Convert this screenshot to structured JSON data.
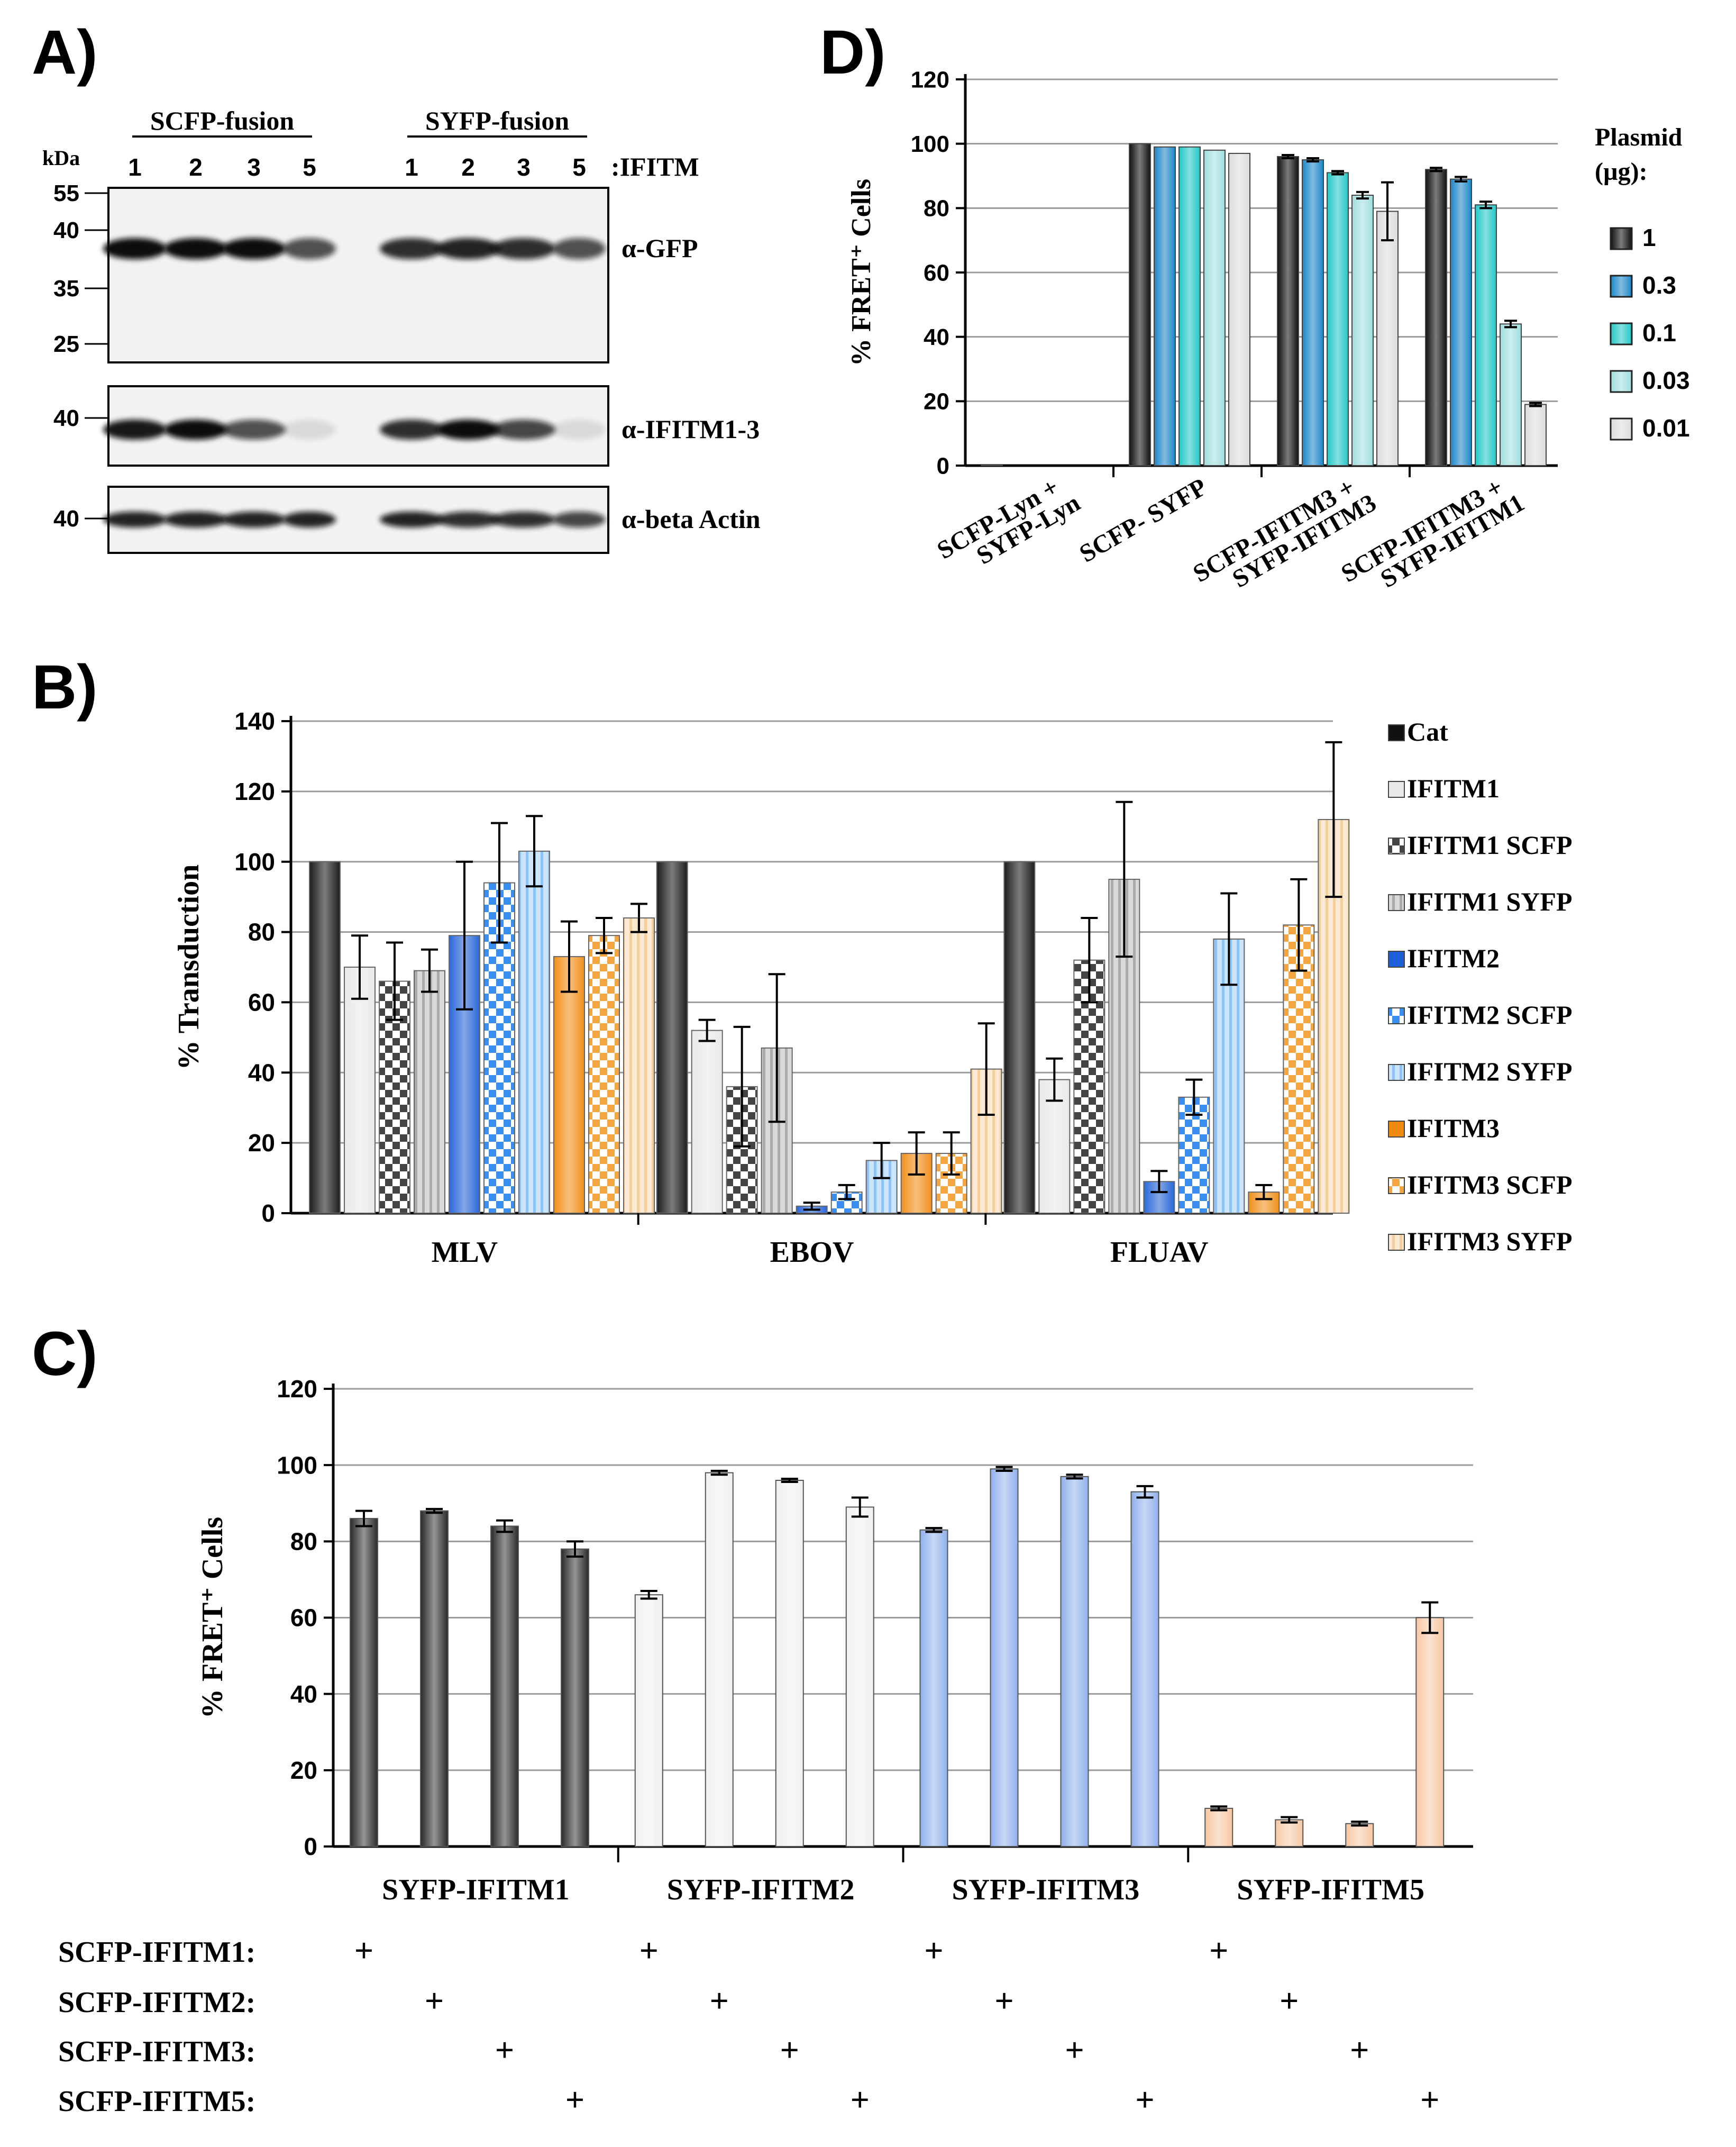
{
  "panels": {
    "a": {
      "letter": "A)",
      "group_scfp": "SCFP-fusion",
      "group_syfp": "SYFP-fusion",
      "kda_label": "kDa",
      "lanes": [
        "1",
        "2",
        "3",
        "5",
        "1",
        "2",
        "3",
        "5"
      ],
      "lane_suffix": ":IFITM",
      "blots": [
        {
          "label": "α-GFP",
          "markers": [
            "55",
            "40",
            "35",
            "25"
          ],
          "band_intensity": [
            1.0,
            1.0,
            1.0,
            0.7,
            0.85,
            0.9,
            0.85,
            0.7
          ]
        },
        {
          "label": "α-IFITM1-3",
          "markers": [
            "40"
          ],
          "band_intensity": [
            0.95,
            1.0,
            0.7,
            0.1,
            0.85,
            1.0,
            0.75,
            0.1
          ]
        },
        {
          "label": "α-beta Actin",
          "markers": [
            "40"
          ],
          "band_intensity": [
            0.9,
            0.9,
            0.9,
            0.9,
            0.9,
            0.85,
            0.85,
            0.75
          ]
        }
      ]
    },
    "b": {
      "letter": "B)"
    },
    "c": {
      "letter": "C)",
      "row_labels": [
        "SCFP-IFITM1:",
        "SCFP-IFITM2:",
        "SCFP-IFITM3:",
        "SCFP-IFITM5:"
      ],
      "plus": "+"
    },
    "d": {
      "letter": "D)"
    }
  },
  "chart_data": [
    {
      "id": "panel-b",
      "type": "bar",
      "ylabel": "% Transduction",
      "ylim": [
        0,
        140
      ],
      "yticks": [
        "0",
        "20",
        "40",
        "60",
        "80",
        "100",
        "120",
        "140"
      ],
      "grid": true,
      "legend_position": "right",
      "categories": [
        "MLV",
        "EBOV",
        "FLUAV"
      ],
      "series": [
        {
          "name": "Cat",
          "values": [
            100,
            100,
            100
          ],
          "errors": [
            0,
            0,
            0
          ],
          "color": "#111111",
          "pattern": "solid"
        },
        {
          "name": "IFITM1",
          "values": [
            70,
            52,
            38
          ],
          "errors": [
            9,
            3,
            6
          ],
          "color": "#e8e8e8",
          "pattern": "solid"
        },
        {
          "name": "IFITM1 SCFP",
          "values": [
            66,
            36,
            72
          ],
          "errors": [
            11,
            17,
            12
          ],
          "color": "#444444",
          "pattern": "check"
        },
        {
          "name": "IFITM1 SYFP",
          "values": [
            69,
            47,
            95
          ],
          "errors": [
            6,
            21,
            22
          ],
          "color": "#aaaaaa",
          "pattern": "vstripe"
        },
        {
          "name": "IFITM2",
          "values": [
            79,
            2,
            9
          ],
          "errors": [
            21,
            1,
            3
          ],
          "color": "#1f5fd6",
          "pattern": "solid"
        },
        {
          "name": "IFITM2 SCFP",
          "values": [
            94,
            6,
            33
          ],
          "errors": [
            17,
            2,
            5
          ],
          "color": "#3a8ef0",
          "pattern": "check"
        },
        {
          "name": "IFITM2 SYFP",
          "values": [
            103,
            15,
            78
          ],
          "errors": [
            10,
            5,
            13
          ],
          "color": "#8fc2f5",
          "pattern": "vstripe"
        },
        {
          "name": "IFITM3",
          "values": [
            73,
            17,
            6
          ],
          "errors": [
            10,
            6,
            2
          ],
          "color": "#f08a10",
          "pattern": "solid"
        },
        {
          "name": "IFITM3 SCFP",
          "values": [
            79,
            17,
            82
          ],
          "errors": [
            5,
            6,
            13
          ],
          "color": "#f5a640",
          "pattern": "check"
        },
        {
          "name": "IFITM3 SYFP",
          "values": [
            84,
            41,
            112
          ],
          "errors": [
            4,
            13,
            22
          ],
          "color": "#f3cfa0",
          "pattern": "vstripe"
        }
      ]
    },
    {
      "id": "panel-c",
      "type": "bar",
      "ylabel": "% FRET⁺ Cells",
      "ylim": [
        0,
        120
      ],
      "yticks": [
        "0",
        "20",
        "40",
        "60",
        "80",
        "100",
        "120"
      ],
      "grid": true,
      "categories": [
        "SYFP-IFITM1",
        "SYFP-IFITM2",
        "SYFP-IFITM3",
        "SYFP-IFITM5"
      ],
      "series": [
        {
          "name": "SCFP-IFITM1",
          "values": [
            86,
            66,
            83,
            10
          ],
          "errors": [
            2,
            1,
            0.5,
            0.5
          ]
        },
        {
          "name": "SCFP-IFITM2",
          "values": [
            88,
            98,
            99,
            7
          ],
          "errors": [
            0.5,
            0.5,
            0.5,
            0.7
          ]
        },
        {
          "name": "SCFP-IFITM3",
          "values": [
            84,
            96,
            97,
            6
          ],
          "errors": [
            1.5,
            0.3,
            0.5,
            0.5
          ]
        },
        {
          "name": "SCFP-IFITM5",
          "values": [
            78,
            89,
            93,
            60
          ],
          "errors": [
            2,
            2.5,
            1.5,
            4
          ]
        }
      ],
      "group_colors": [
        "#2a2a2a",
        "#f0f0f0",
        "#8fb0ec",
        "#f6c7a3"
      ]
    },
    {
      "id": "panel-d",
      "type": "bar",
      "ylabel": "% FRET⁺ Cells",
      "ylim": [
        0,
        120
      ],
      "yticks": [
        "0",
        "20",
        "40",
        "60",
        "80",
        "100",
        "120"
      ],
      "grid": true,
      "legend_title": "Plasmid (µg):",
      "legend_position": "right",
      "categories": [
        "SCFP-Lyn + SYFP-Lyn",
        "SCFP- SYFP",
        "SCFP-IFITM3 + SYFP-IFITM3",
        "SCFP-IFITM3 + SYFP-IFITM1"
      ],
      "series": [
        {
          "name": "1",
          "values": [
            0.3,
            100,
            96,
            92
          ],
          "errors": [
            0,
            0,
            0.5,
            0.5
          ],
          "color": "#111111"
        },
        {
          "name": "0.3",
          "values": [
            0,
            99,
            95,
            89
          ],
          "errors": [
            0,
            0,
            0.5,
            0.7
          ],
          "color": "#1a86c8"
        },
        {
          "name": "0.1",
          "values": [
            0,
            99,
            91,
            81
          ],
          "errors": [
            0,
            0,
            0.5,
            1
          ],
          "color": "#22c7c7"
        },
        {
          "name": "0.03",
          "values": [
            0,
            98,
            84,
            44
          ],
          "errors": [
            0,
            0,
            1,
            1
          ],
          "color": "#9fdede"
        },
        {
          "name": "0.01",
          "values": [
            0,
            97,
            79,
            19
          ],
          "errors": [
            0,
            0,
            9,
            0.5
          ],
          "color": "#dcdcdc"
        }
      ]
    }
  ]
}
